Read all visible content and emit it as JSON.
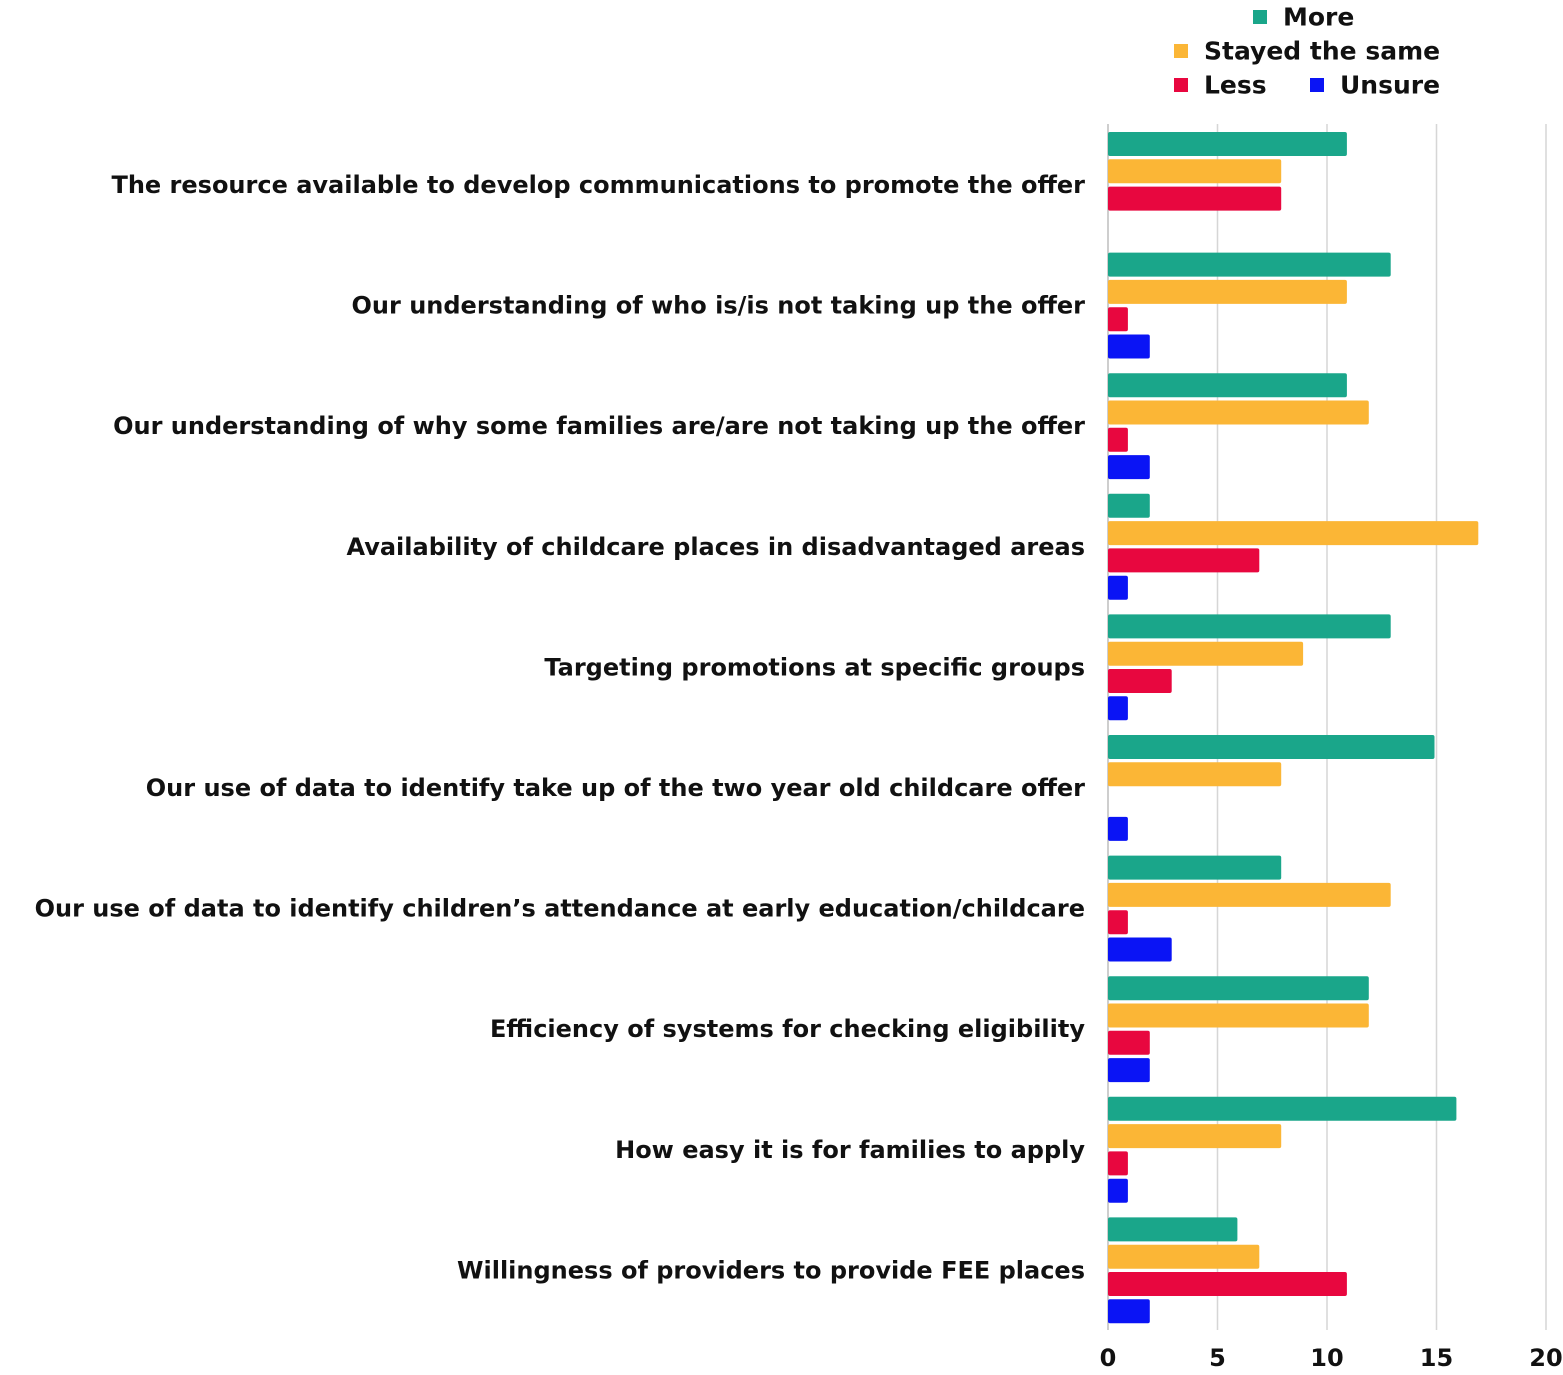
{
  "chart_data": {
    "type": "bar",
    "orientation": "horizontal",
    "title": "",
    "xlabel": "",
    "ylabel": "",
    "xlim": [
      0,
      20
    ],
    "x_ticks": [
      0,
      5,
      10,
      15,
      20
    ],
    "grid": "vertical",
    "legend_position": "top-right",
    "categories": [
      "The resource available to develop communications to promote the offer",
      "Our understanding of who is/is not taking up the offer",
      "Our understanding of why some families are/are not taking up the offer",
      "Availability of childcare places in disadvantaged areas",
      "Targeting promotions at specific groups",
      "Our use of data to identify take up of the two year old childcare offer",
      "Our use of data to identify children’s attendance at early education/childcare",
      "Efficiency of systems for checking eligibility",
      "How easy it is for families to apply",
      "Willingness of providers to provide FEE places"
    ],
    "series": [
      {
        "name": "More",
        "color": "#1aa68a",
        "values": [
          11,
          13,
          11,
          2,
          13,
          15,
          8,
          12,
          16,
          6
        ]
      },
      {
        "name": "Stayed the same",
        "color": "#fbb636",
        "values": [
          8,
          11,
          12,
          17,
          9,
          8,
          13,
          12,
          8,
          7
        ]
      },
      {
        "name": "Less",
        "color": "#e8073f",
        "values": [
          8,
          1,
          1,
          7,
          3,
          0,
          1,
          2,
          1,
          11
        ]
      },
      {
        "name": "Unsure",
        "color": "#0a14f5",
        "values": [
          0,
          2,
          2,
          1,
          1,
          1,
          3,
          2,
          1,
          2
        ]
      }
    ]
  }
}
